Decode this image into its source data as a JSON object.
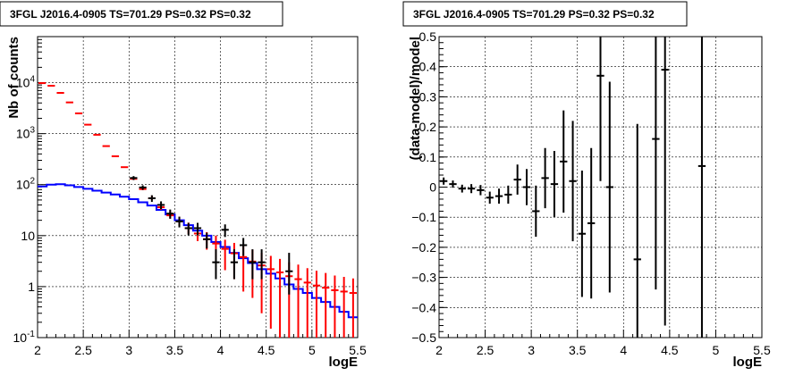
{
  "chart_data": [
    {
      "type": "line",
      "title": "3FGL J2016.4-0905 TS=701.29 PS=0.32 PS=0.32",
      "xlabel": "logE",
      "ylabel": "Nb of counts",
      "xlim": [
        2,
        5.5
      ],
      "ylim": [
        0.1,
        80000
      ],
      "yscale": "log",
      "grid": true,
      "x_ticks": [
        "2",
        "2.5",
        "3",
        "3.5",
        "4",
        "4.5",
        "5",
        "5.5"
      ],
      "y_ticks": [
        {
          "base": "10",
          "exp": "-1",
          "plain": "10",
          "value": 0.1
        },
        {
          "base": "1",
          "exp": "",
          "plain": "1",
          "value": 1
        },
        {
          "base": "10",
          "exp": "",
          "plain": "10",
          "value": 10
        },
        {
          "base": "10",
          "exp": "2",
          "plain": "",
          "value": 100
        },
        {
          "base": "10",
          "exp": "3",
          "plain": "",
          "value": 1000
        },
        {
          "base": "10",
          "exp": "4",
          "plain": "",
          "value": 10000
        }
      ],
      "bin_width": 0.1,
      "series": [
        {
          "color": "#0000ff",
          "style": "step",
          "x": [
            2.0,
            2.1,
            2.2,
            2.3,
            2.4,
            2.5,
            2.6,
            2.7,
            2.8,
            2.9,
            3.0,
            3.1,
            3.2,
            3.3,
            3.4,
            3.5,
            3.6,
            3.7,
            3.8,
            3.9,
            4.0,
            4.1,
            4.2,
            4.3,
            4.4,
            4.5,
            4.6,
            4.7,
            4.8,
            4.9,
            5.0,
            5.1,
            5.2,
            5.3,
            5.4
          ],
          "values": [
            92,
            100,
            102,
            97,
            90,
            83,
            76,
            70,
            64,
            58,
            52,
            45,
            39,
            32,
            26,
            20,
            16,
            12.5,
            10,
            7.5,
            6,
            4.6,
            3.6,
            2.9,
            2.2,
            1.8,
            1.45,
            1.1,
            0.9,
            0.75,
            0.6,
            0.5,
            0.4,
            0.32,
            0.25
          ]
        },
        {
          "color": "#ff0000",
          "style": "errorbar",
          "x": [
            2.05,
            2.15,
            2.25,
            2.35,
            2.45,
            2.55,
            2.65,
            2.75,
            2.85,
            2.95,
            3.05,
            3.15,
            3.25,
            3.35,
            3.45,
            3.55,
            3.65,
            3.75,
            3.85,
            3.95,
            4.05,
            4.15,
            4.25,
            4.35,
            4.45,
            4.55,
            4.65,
            4.75,
            4.85,
            4.95,
            5.05,
            5.15,
            5.25,
            5.35,
            5.45
          ],
          "values": [
            9800,
            8700,
            6300,
            4100,
            2500,
            1500,
            950,
            570,
            360,
            220,
            130,
            82,
            54,
            36,
            25,
            19,
            14,
            11,
            8.5,
            7,
            5.5,
            4.5,
            3.8,
            3.1,
            2.6,
            2.2,
            1.9,
            1.6,
            1.4,
            1.2,
            1.05,
            0.95,
            0.85,
            0.8,
            0.75
          ],
          "err_low": [
            0,
            0,
            0,
            0,
            0,
            0,
            0,
            0,
            0,
            0,
            5,
            4,
            4,
            4,
            3.5,
            3.5,
            3.2,
            3.2,
            3.2,
            3.6,
            3.4,
            3.1,
            3.0,
            2.5,
            2.3,
            2.05,
            1.8,
            1.54,
            1.36,
            1.19,
            1.04,
            0.949,
            0.849,
            0.799,
            0.749
          ],
          "err_high": [
            0,
            0,
            0,
            0,
            0,
            0,
            0,
            0,
            0,
            0,
            10,
            9,
            7,
            6,
            5,
            4.5,
            4,
            3.6,
            3.2,
            3,
            2.8,
            2.7,
            2.4,
            2.2,
            2.0,
            1.8,
            1.6,
            1.4,
            1.3,
            1.1,
            1.0,
            0.9,
            0.8,
            0.75,
            0.7
          ]
        },
        {
          "color": "#000000",
          "style": "errorbar",
          "x": [
            3.05,
            3.15,
            3.25,
            3.35,
            3.45,
            3.55,
            3.65,
            3.75,
            3.85,
            3.95,
            4.05,
            4.15,
            4.25,
            4.35,
            4.45,
            4.75
          ],
          "values": [
            135,
            88,
            54,
            40,
            27,
            19,
            14,
            14,
            8.5,
            3,
            13,
            3,
            6.5,
            3,
            3,
            2
          ],
          "err_low": [
            12,
            9,
            8,
            7,
            5.5,
            4.5,
            3.8,
            3.8,
            2.9,
            1.6,
            3.6,
            1.6,
            2.5,
            1.6,
            1.6,
            1.3
          ],
          "err_high": [
            12,
            9,
            8,
            7,
            5.5,
            4.5,
            3.8,
            3.8,
            2.9,
            2.4,
            3.6,
            2.4,
            2.5,
            2.4,
            2.4,
            2.6
          ]
        }
      ]
    },
    {
      "type": "scatter",
      "title": "3FGL J2016.4-0905 TS=701.29 PS=0.32 PS=0.32",
      "xlabel": "logE",
      "ylabel": "(data-model)/model",
      "xlim": [
        2,
        5.5
      ],
      "ylim": [
        -0.5,
        0.5
      ],
      "grid": true,
      "x_ticks": [
        "2",
        "2.5",
        "3",
        "3.5",
        "4",
        "4.5",
        "5",
        "5.5"
      ],
      "y_ticks": [
        "-0.5",
        "-0.4",
        "-0.3",
        "-0.2",
        "-0.1",
        "0",
        "0.1",
        "0.2",
        "0.3",
        "0.4",
        "0.5"
      ],
      "bin_width": 0.1,
      "series": [
        {
          "color": "#000000",
          "style": "errorbar",
          "x": [
            2.05,
            2.15,
            2.25,
            2.35,
            2.45,
            2.55,
            2.65,
            2.75,
            2.85,
            2.95,
            3.05,
            3.15,
            3.25,
            3.35,
            3.45,
            3.55,
            3.65,
            3.75,
            3.85,
            4.15,
            4.35,
            4.45,
            4.85
          ],
          "values": [
            0.02,
            0.01,
            -0.005,
            -0.005,
            -0.01,
            -0.035,
            -0.03,
            -0.025,
            0.025,
            0.0,
            -0.08,
            0.03,
            0.01,
            0.085,
            0.02,
            -0.155,
            -0.12,
            0.37,
            0.0,
            -0.24,
            0.16,
            0.39,
            0.07
          ],
          "err": [
            0.012,
            0.012,
            0.013,
            0.015,
            0.017,
            0.02,
            0.025,
            0.03,
            0.05,
            0.06,
            0.085,
            0.1,
            0.11,
            0.17,
            0.2,
            0.21,
            0.25,
            0.35,
            0.35,
            0.45,
            0.5,
            0.85,
            0.9
          ]
        }
      ]
    }
  ]
}
